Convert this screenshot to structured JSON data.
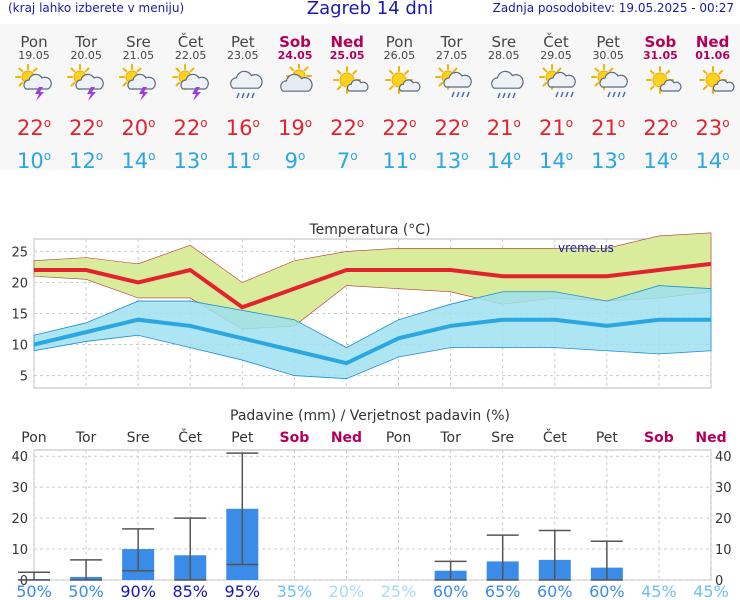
{
  "header": {
    "menu_hint": "(kraj lahko izberete v meniju)",
    "title": "Zagreb 14 dni",
    "updated": "Zadnja posodobitev: 19.05.2025 - 00:27"
  },
  "forecast": [
    {
      "day": "Pon",
      "date": "19.05",
      "icon": "sun-cloud-thunder-icon",
      "tmax": "22",
      "tmin": "10",
      "weekend": false
    },
    {
      "day": "Tor",
      "date": "20.05",
      "icon": "sun-cloud-thunder-icon",
      "tmax": "22",
      "tmin": "12",
      "weekend": false
    },
    {
      "day": "Sre",
      "date": "21.05",
      "icon": "sun-cloud-thunder-icon",
      "tmax": "20",
      "tmin": "14",
      "weekend": false
    },
    {
      "day": "Čet",
      "date": "22.05",
      "icon": "sun-cloud-thunder-icon",
      "tmax": "22",
      "tmin": "13",
      "weekend": false
    },
    {
      "day": "Pet",
      "date": "23.05",
      "icon": "cloud-rain-icon",
      "tmax": "16",
      "tmin": "11",
      "weekend": false
    },
    {
      "day": "Sob",
      "date": "24.05",
      "icon": "sun-cloud-icon",
      "tmax": "19",
      "tmin": "9",
      "weekend": true
    },
    {
      "day": "Ned",
      "date": "25.05",
      "icon": "sun-small-cloud-icon",
      "tmax": "22",
      "tmin": "7",
      "weekend": true
    },
    {
      "day": "Pon",
      "date": "26.05",
      "icon": "sun-small-cloud-icon",
      "tmax": "22",
      "tmin": "11",
      "weekend": false
    },
    {
      "day": "Tor",
      "date": "27.05",
      "icon": "sun-cloud-rain-icon",
      "tmax": "22",
      "tmin": "13",
      "weekend": false
    },
    {
      "day": "Sre",
      "date": "28.05",
      "icon": "cloud-rain-icon",
      "tmax": "21",
      "tmin": "14",
      "weekend": false
    },
    {
      "day": "Čet",
      "date": "29.05",
      "icon": "sun-cloud-rain-icon",
      "tmax": "21",
      "tmin": "14",
      "weekend": false
    },
    {
      "day": "Pet",
      "date": "30.05",
      "icon": "sun-cloud-rain-icon",
      "tmax": "21",
      "tmin": "13",
      "weekend": false
    },
    {
      "day": "Sob",
      "date": "31.05",
      "icon": "sun-small-cloud-icon",
      "tmax": "22",
      "tmin": "14",
      "weekend": true
    },
    {
      "day": "Ned",
      "date": "01.06",
      "icon": "sun-small-cloud-icon",
      "tmax": "23",
      "tmin": "14",
      "weekend": true
    }
  ],
  "degree_mark": "o",
  "colors": {
    "max": "#e2232e",
    "min": "#2aa6e0",
    "max_band": "#d8ec9c",
    "min_band": "#9fe1f0",
    "rain_bar": "#3a8ce8",
    "weekend": "#b5005a"
  },
  "chart_data": [
    {
      "type": "line",
      "title": "Temperatura (°C)",
      "watermark": "vreme.us",
      "x": [
        "19.05",
        "20.05",
        "21.05",
        "22.05",
        "23.05",
        "24.05",
        "25.05",
        "26.05",
        "27.05",
        "28.05",
        "29.05",
        "30.05",
        "31.05",
        "01.06"
      ],
      "ylim": [
        3,
        27
      ],
      "yticks": [
        5,
        10,
        15,
        20,
        25
      ],
      "grid": true,
      "series": [
        {
          "role": "max",
          "values": [
            22,
            22,
            20,
            22,
            16,
            19,
            22,
            22,
            22,
            21,
            21,
            21,
            22,
            23
          ],
          "band_upper": [
            23.5,
            24,
            23,
            26,
            20,
            23.5,
            25,
            25.5,
            25.5,
            25.5,
            25.5,
            25.5,
            27.5,
            28
          ],
          "band_lower": [
            21,
            20.5,
            17.5,
            17.5,
            12.5,
            13,
            19.5,
            19,
            18.5,
            16.5,
            17.5,
            17,
            17.5,
            18.5
          ]
        },
        {
          "role": "min",
          "values": [
            10,
            12,
            14,
            13,
            11,
            9,
            7,
            11,
            13,
            14,
            14,
            13,
            14,
            14
          ],
          "band_upper": [
            11.5,
            13.5,
            17,
            17,
            15.5,
            14,
            9.5,
            14,
            16.5,
            18.5,
            18.5,
            17,
            19.5,
            19
          ],
          "band_lower": [
            9,
            10.5,
            11.5,
            9.5,
            7.5,
            5,
            4.5,
            8,
            9.5,
            9.5,
            9.5,
            9,
            8.5,
            9
          ]
        }
      ]
    },
    {
      "type": "bar",
      "title": "Padavine (mm) / Verjetnost padavin (%)",
      "categories": [
        "Pon",
        "Tor",
        "Sre",
        "Čet",
        "Pet",
        "Sob",
        "Ned",
        "Pon",
        "Tor",
        "Sre",
        "Čet",
        "Pet",
        "Sob",
        "Ned"
      ],
      "weekend": [
        false,
        false,
        false,
        false,
        false,
        true,
        true,
        false,
        false,
        false,
        false,
        false,
        true,
        true
      ],
      "ylim": [
        0,
        42
      ],
      "yticks": [
        0,
        10,
        20,
        30,
        40
      ],
      "values": [
        0.3,
        1,
        10,
        8,
        23,
        0,
        0,
        0,
        3,
        6,
        6.5,
        4,
        0,
        0
      ],
      "range_min": [
        0,
        0,
        3,
        0,
        5,
        0,
        0,
        0,
        0,
        0,
        0,
        0,
        0,
        0
      ],
      "range_max": [
        2.5,
        6.5,
        16.5,
        20,
        41,
        0,
        0,
        0,
        6,
        14.5,
        16,
        12.5,
        0,
        0
      ],
      "probability": [
        "50%",
        "50%",
        "90%",
        "85%",
        "95%",
        "35%",
        "20%",
        "25%",
        "60%",
        "65%",
        "60%",
        "60%",
        "45%",
        "45%"
      ],
      "probability_colors": [
        "#3a8ce8",
        "#3a8ce8",
        "#1515b8",
        "#1515b8",
        "#1515b8",
        "#6ec0ea",
        "#a6dcf2",
        "#a6dcf2",
        "#3a8ce8",
        "#3a8ce8",
        "#3a8ce8",
        "#3a8ce8",
        "#6ec0ea",
        "#6ec0ea"
      ]
    }
  ]
}
